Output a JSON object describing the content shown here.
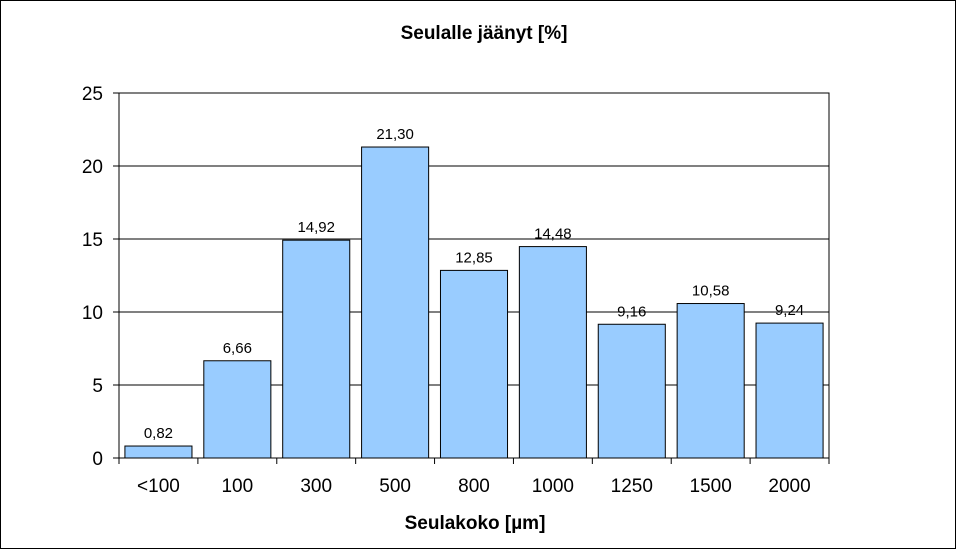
{
  "chart_data": {
    "type": "bar",
    "title": "Seulalle jäänyt [%]",
    "xlabel": "Seulakoko [µm]",
    "ylabel": "",
    "categories": [
      "<100",
      "100",
      "300",
      "500",
      "800",
      "1000",
      "1250",
      "1500",
      "2000"
    ],
    "values": [
      0.82,
      6.66,
      14.92,
      21.3,
      12.85,
      14.48,
      9.16,
      10.58,
      9.24
    ],
    "data_labels": [
      "0,82",
      "6,66",
      "14,92",
      "21,30",
      "12,85",
      "14,48",
      "9,16",
      "10,58",
      "9,24"
    ],
    "ylim": [
      0,
      25
    ],
    "yticks": [
      0,
      5,
      10,
      15,
      20,
      25
    ],
    "grid": true,
    "legend": "none",
    "bar_color": "#99ccff",
    "bar_edge_color": "#000000",
    "grid_color": "#000000"
  }
}
